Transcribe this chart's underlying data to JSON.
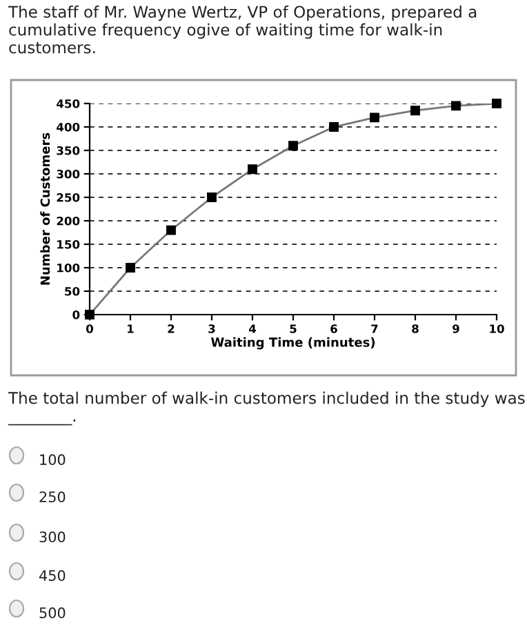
{
  "chart_data": {
    "type": "line",
    "title": "The staff of Mr. Wayne Wertz, VP of Operations, prepared a cumulative frequency ogive of waiting time for walk-in customers.",
    "xlabel": "Waiting Time (minutes)",
    "ylabel": "Number of Customers",
    "x": [
      0,
      1,
      2,
      3,
      4,
      5,
      6,
      7,
      8,
      9,
      10
    ],
    "series": [
      {
        "color": "#000000",
        "values": [
          0,
          100,
          180,
          250,
          310,
          360,
          400,
          420,
          435,
          445,
          450
        ]
      }
    ],
    "xlim": [
      0,
      10
    ],
    "xticks": [
      0,
      1,
      2,
      3,
      4,
      5,
      6,
      7,
      8,
      9,
      10
    ],
    "ylim": [
      0,
      450
    ],
    "yticks": [
      0,
      50,
      100,
      150,
      200,
      250,
      300,
      350,
      400,
      450
    ],
    "grid": "y",
    "marker": "square",
    "line_style": "solid",
    "legend": false,
    "annotations": [
      "The total number of walk-in customers included in the study was ________.",
      "100",
      "250",
      "300",
      "450",
      "500"
    ]
  }
}
